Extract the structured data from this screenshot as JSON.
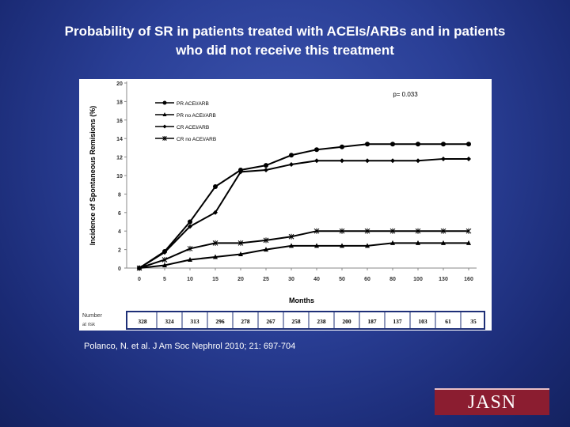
{
  "slide": {
    "title_line1": "Probability of SR in patients treated with ACEIs/ARBs and in patients",
    "title_line2": "who did not receive this treatment",
    "citation": "Polanco, N. et al. J Am Soc Nephrol 2010; 21: 697-704",
    "logo": "JASN",
    "background_color": "#2a3f96",
    "logo_color": "#8b1d30"
  },
  "chart_data": {
    "type": "line",
    "title": "",
    "ylabel": "Incidence of Spontaneous Remisions (%)",
    "xlabel": "Months",
    "ylim": [
      0,
      20
    ],
    "yticks": [
      "0",
      "2",
      "4",
      "6",
      "8",
      "10",
      "12",
      "14",
      "16",
      "18",
      "20"
    ],
    "categories": [
      "0",
      "5",
      "10",
      "15",
      "20",
      "25",
      "30",
      "40",
      "50",
      "60",
      "80",
      "100",
      "130",
      "160"
    ],
    "annotation": "p= 0.033",
    "legend_position": "top-left",
    "grid": false,
    "series": [
      {
        "name": "PR ACEI/ARB",
        "marker": "circle",
        "values": [
          0,
          1.8,
          5.0,
          8.8,
          10.6,
          11.1,
          12.2,
          12.8,
          13.1,
          13.4,
          13.4,
          13.4,
          13.4,
          13.4
        ]
      },
      {
        "name": "PR no ACEI/ARB",
        "marker": "triangle",
        "values": [
          0,
          0.3,
          0.9,
          1.2,
          1.5,
          2.0,
          2.4,
          2.4,
          2.4,
          2.4,
          2.7,
          2.7,
          2.7,
          2.7
        ]
      },
      {
        "name": "CR ACEI/ARB",
        "marker": "diamond",
        "values": [
          0,
          1.7,
          4.5,
          6.0,
          10.4,
          10.6,
          11.2,
          11.6,
          11.6,
          11.6,
          11.6,
          11.6,
          11.8,
          11.8
        ]
      },
      {
        "name": "CR no ACEI/ARB",
        "marker": "asterisk",
        "values": [
          0,
          0.9,
          2.1,
          2.7,
          2.7,
          3.0,
          3.4,
          4.0,
          4.0,
          4.0,
          4.0,
          4.0,
          4.0,
          4.0
        ]
      }
    ],
    "at_risk_label_line1": "Number",
    "at_risk_label_line2": "at risk",
    "at_risk": [
      "328",
      "324",
      "313",
      "296",
      "278",
      "267",
      "258",
      "238",
      "200",
      "187",
      "137",
      "103",
      "61",
      "35"
    ]
  }
}
